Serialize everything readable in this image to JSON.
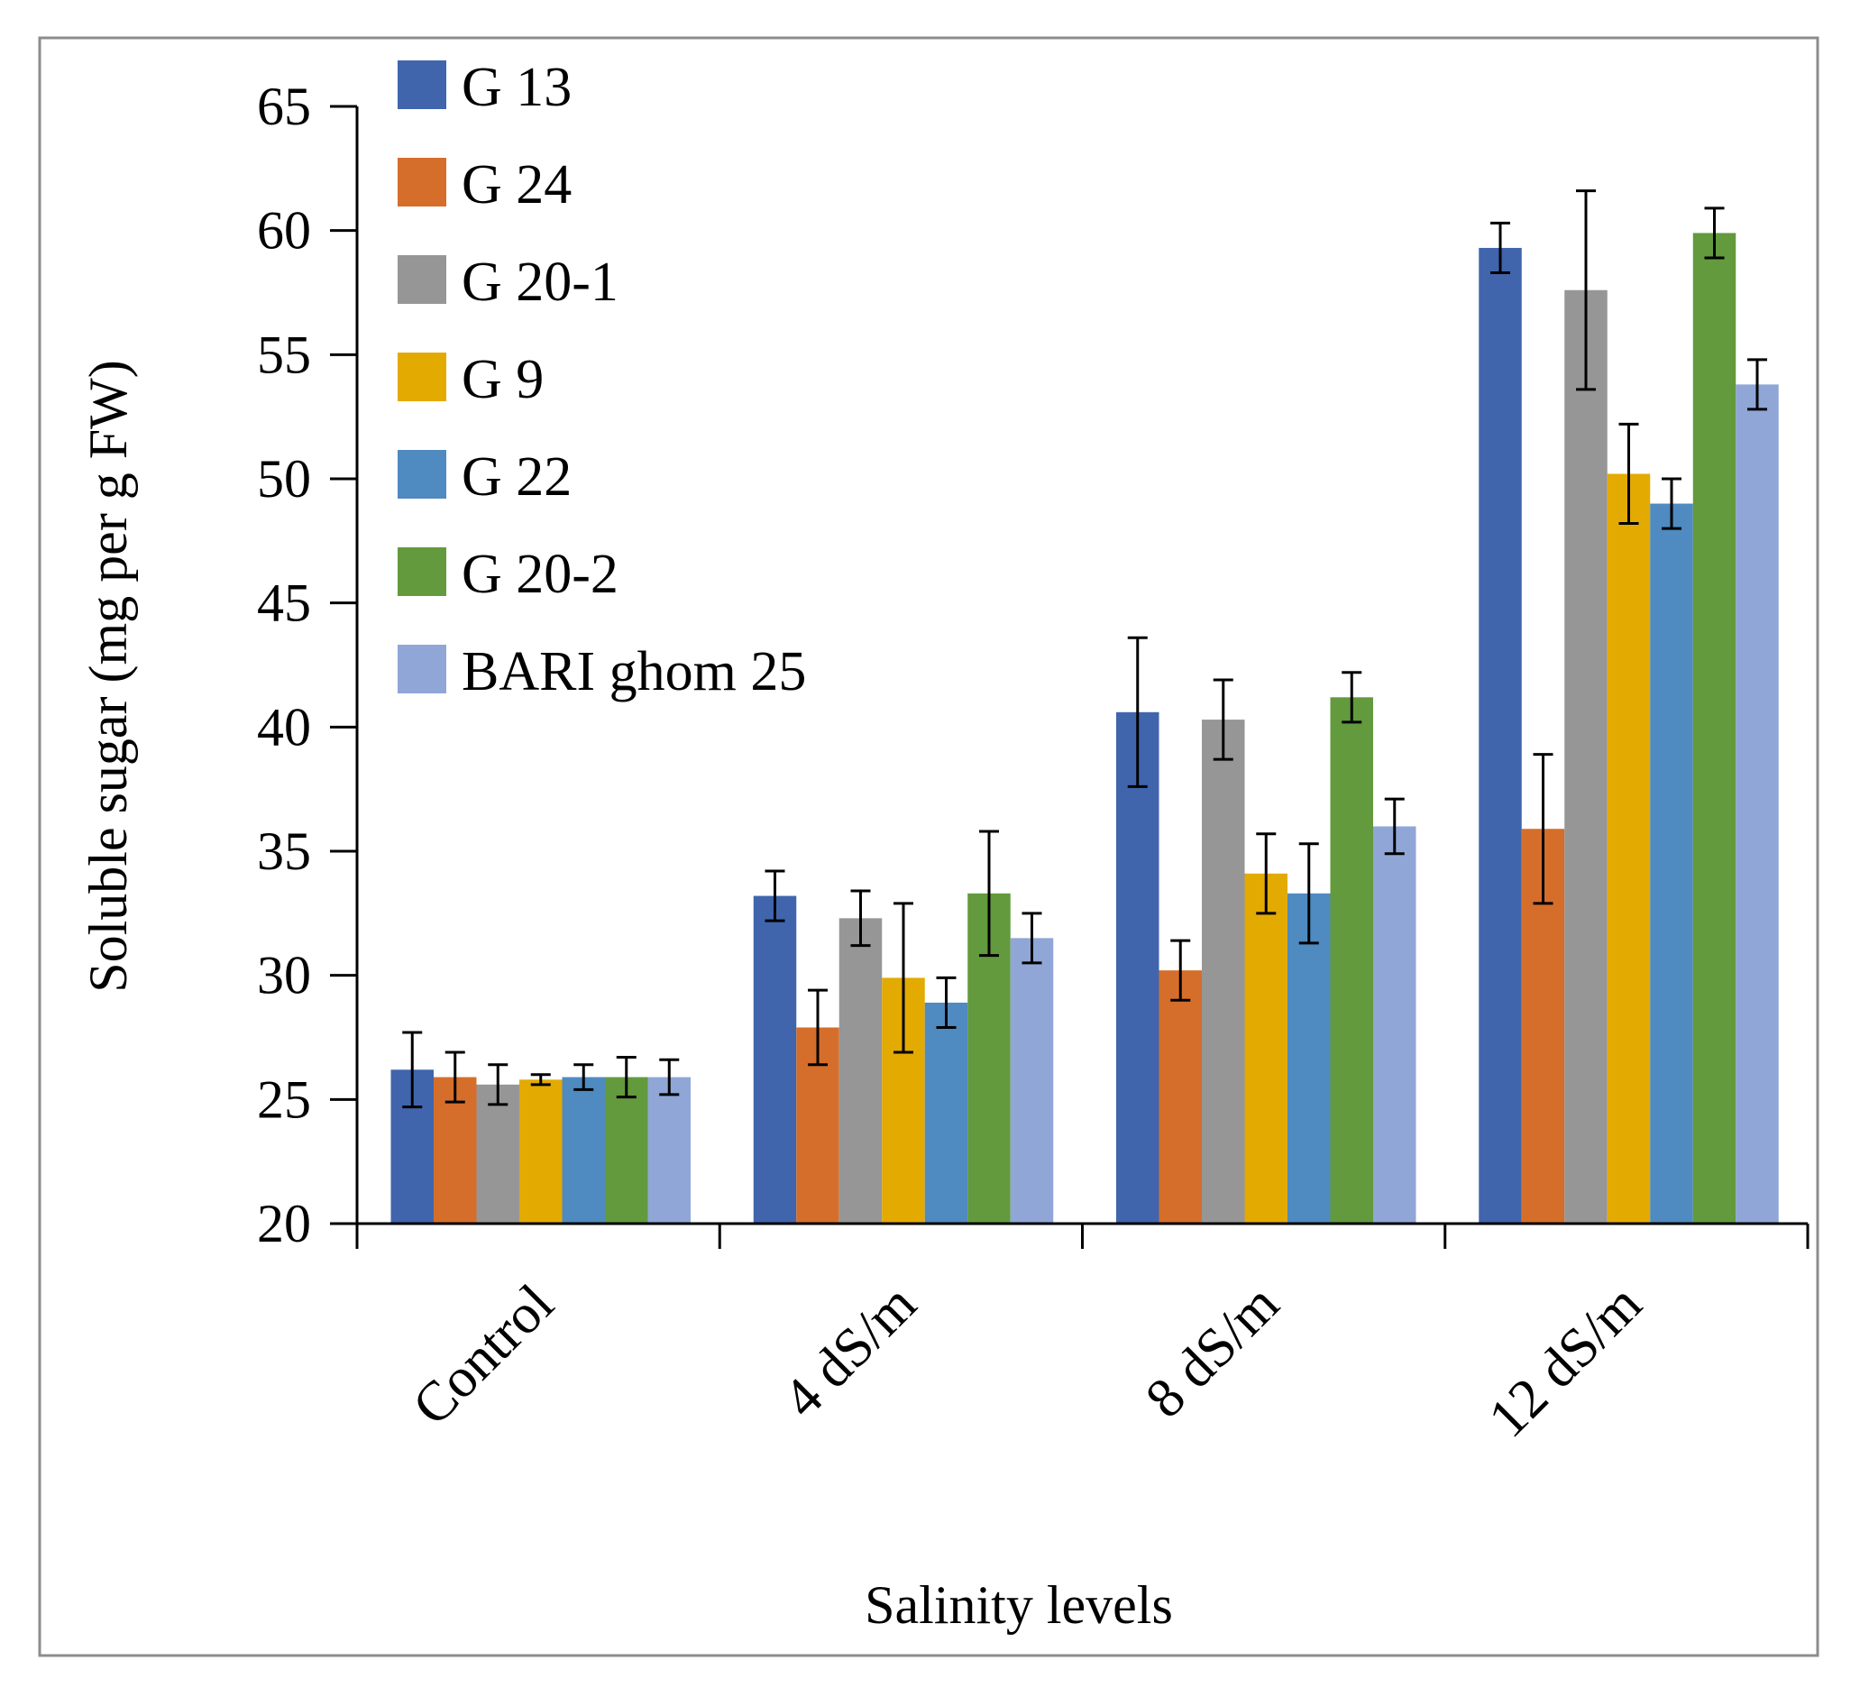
{
  "chart_data": {
    "type": "bar",
    "title": "",
    "xlabel": "Salinity levels",
    "ylabel": "Soluble sugar (mg per g FW)",
    "ylim": [
      20,
      65
    ],
    "yticks": [
      20,
      25,
      30,
      35,
      40,
      45,
      50,
      55,
      60,
      65
    ],
    "categories": [
      "Control",
      "4 dS/m",
      "8 dS/m",
      "12 dS/m"
    ],
    "legend_position": "top-left",
    "grid": false,
    "error_bars": true,
    "series": [
      {
        "name": "G 13",
        "color": "#4065ad",
        "values": [
          26.2,
          33.2,
          40.6,
          59.3
        ],
        "errors": [
          1.5,
          1.0,
          3.0,
          1.0
        ]
      },
      {
        "name": "G 24",
        "color": "#d56e2b",
        "values": [
          25.9,
          27.9,
          30.2,
          35.9
        ],
        "errors": [
          1.0,
          1.5,
          1.2,
          3.0
        ]
      },
      {
        "name": "G 20-1",
        "color": "#969696",
        "values": [
          25.6,
          32.3,
          40.3,
          57.6
        ],
        "errors": [
          0.8,
          1.1,
          1.6,
          4.0
        ]
      },
      {
        "name": "G 9",
        "color": "#e3aa02",
        "values": [
          25.8,
          29.9,
          34.1,
          50.2
        ],
        "errors": [
          0.2,
          3.0,
          1.6,
          2.0
        ]
      },
      {
        "name": "G 22",
        "color": "#4f8ac0",
        "values": [
          25.9,
          28.9,
          33.3,
          49.0
        ],
        "errors": [
          0.5,
          1.0,
          2.0,
          1.0
        ]
      },
      {
        "name": "G 20-2",
        "color": "#629a3d",
        "values": [
          25.9,
          33.3,
          41.2,
          59.9
        ],
        "errors": [
          0.8,
          2.5,
          1.0,
          1.0
        ]
      },
      {
        "name": "BARI ghom 25",
        "color": "#90a6d7",
        "values": [
          25.9,
          31.5,
          36.0,
          53.8
        ],
        "errors": [
          0.7,
          1.0,
          1.1,
          1.0
        ]
      }
    ]
  }
}
